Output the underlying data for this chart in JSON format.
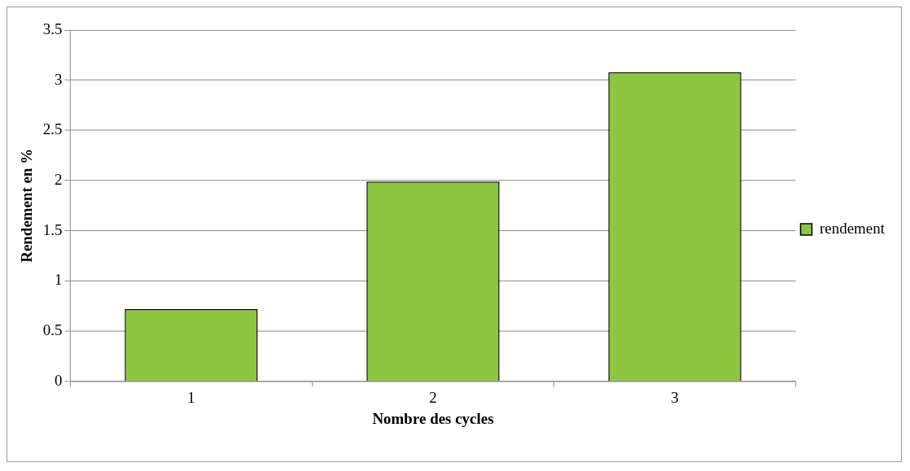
{
  "chart_data": {
    "type": "bar",
    "xlabel": "Nombre des cycles",
    "ylabel": "Rendement en %",
    "categories": [
      "1",
      "2",
      "3"
    ],
    "series": [
      {
        "name": "rendement",
        "color": "#8dc63f",
        "values": [
          0.72,
          1.99,
          3.08
        ]
      }
    ],
    "ylim": [
      0,
      3.5
    ],
    "yticks": [
      0,
      0.5,
      1,
      1.5,
      2,
      2.5,
      3,
      3.5
    ],
    "grid": "y",
    "legend": "right"
  }
}
